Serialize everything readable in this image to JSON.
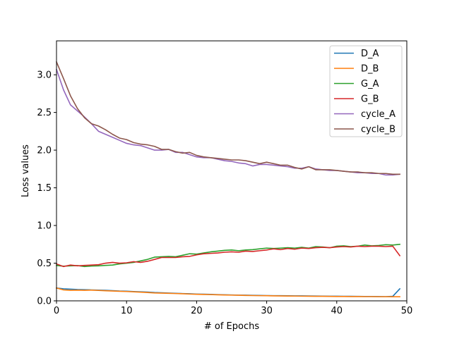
{
  "chart_data": {
    "type": "line",
    "title": "",
    "xlabel": "# of Epochs",
    "ylabel": "Loss values",
    "xlim": [
      0,
      50
    ],
    "ylim": [
      0,
      3.45
    ],
    "xticks": [
      0,
      10,
      20,
      30,
      40,
      50
    ],
    "xtick_labels": [
      "0",
      "10",
      "20",
      "30",
      "40",
      "50"
    ],
    "yticks": [
      0.0,
      0.5,
      1.0,
      1.5,
      2.0,
      2.5,
      3.0
    ],
    "ytick_labels": [
      "0.0",
      "0.5",
      "1.0",
      "1.5",
      "2.0",
      "2.5",
      "3.0"
    ],
    "grid": false,
    "legend_position": "top-right",
    "x": [
      0,
      1,
      2,
      3,
      4,
      5,
      6,
      7,
      8,
      9,
      10,
      11,
      12,
      13,
      14,
      15,
      16,
      17,
      18,
      19,
      20,
      21,
      22,
      23,
      24,
      25,
      26,
      27,
      28,
      29,
      30,
      31,
      32,
      33,
      34,
      35,
      36,
      37,
      38,
      39,
      40,
      41,
      42,
      43,
      44,
      45,
      46,
      47,
      48,
      49
    ],
    "series": [
      {
        "name": "D_A",
        "color": "#1f77b4",
        "values": [
          0.17,
          0.16,
          0.155,
          0.15,
          0.148,
          0.145,
          0.142,
          0.14,
          0.135,
          0.13,
          0.128,
          0.124,
          0.12,
          0.116,
          0.11,
          0.107,
          0.104,
          0.1,
          0.097,
          0.094,
          0.09,
          0.088,
          0.086,
          0.083,
          0.08,
          0.078,
          0.076,
          0.075,
          0.073,
          0.072,
          0.07,
          0.069,
          0.068,
          0.067,
          0.066,
          0.066,
          0.065,
          0.064,
          0.063,
          0.062,
          0.061,
          0.06,
          0.06,
          0.059,
          0.058,
          0.058,
          0.057,
          0.056,
          0.06,
          0.16
        ]
      },
      {
        "name": "D_B",
        "color": "#ff7f0e",
        "values": [
          0.17,
          0.145,
          0.14,
          0.142,
          0.14,
          0.142,
          0.138,
          0.134,
          0.13,
          0.127,
          0.124,
          0.12,
          0.115,
          0.11,
          0.105,
          0.102,
          0.1,
          0.097,
          0.094,
          0.09,
          0.087,
          0.085,
          0.083,
          0.08,
          0.078,
          0.076,
          0.074,
          0.072,
          0.07,
          0.069,
          0.068,
          0.066,
          0.065,
          0.064,
          0.063,
          0.062,
          0.061,
          0.06,
          0.06,
          0.059,
          0.058,
          0.058,
          0.057,
          0.057,
          0.056,
          0.056,
          0.055,
          0.055,
          0.054,
          0.054
        ]
      },
      {
        "name": "G_A",
        "color": "#2ca02c",
        "values": [
          0.47,
          0.46,
          0.465,
          0.468,
          0.455,
          0.462,
          0.465,
          0.47,
          0.475,
          0.49,
          0.5,
          0.51,
          0.53,
          0.55,
          0.58,
          0.585,
          0.59,
          0.585,
          0.605,
          0.625,
          0.62,
          0.635,
          0.65,
          0.66,
          0.67,
          0.675,
          0.665,
          0.675,
          0.68,
          0.69,
          0.7,
          0.695,
          0.7,
          0.705,
          0.7,
          0.71,
          0.7,
          0.72,
          0.715,
          0.705,
          0.725,
          0.73,
          0.72,
          0.725,
          0.74,
          0.73,
          0.735,
          0.745,
          0.74,
          0.75
        ]
      },
      {
        "name": "G_B",
        "color": "#d62728",
        "values": [
          0.49,
          0.455,
          0.475,
          0.465,
          0.47,
          0.475,
          0.48,
          0.5,
          0.51,
          0.5,
          0.505,
          0.52,
          0.51,
          0.525,
          0.55,
          0.575,
          0.575,
          0.575,
          0.585,
          0.59,
          0.61,
          0.625,
          0.63,
          0.635,
          0.645,
          0.65,
          0.645,
          0.66,
          0.655,
          0.665,
          0.675,
          0.69,
          0.68,
          0.695,
          0.685,
          0.7,
          0.695,
          0.705,
          0.71,
          0.705,
          0.715,
          0.72,
          0.715,
          0.725,
          0.72,
          0.725,
          0.725,
          0.72,
          0.725,
          0.6
        ]
      },
      {
        "name": "cycle_A",
        "color": "#9467bd",
        "values": [
          3.07,
          2.8,
          2.6,
          2.52,
          2.44,
          2.35,
          2.25,
          2.21,
          2.17,
          2.13,
          2.09,
          2.07,
          2.06,
          2.03,
          2.0,
          2.0,
          2.01,
          1.97,
          1.97,
          1.94,
          1.91,
          1.9,
          1.9,
          1.88,
          1.86,
          1.85,
          1.83,
          1.82,
          1.79,
          1.81,
          1.81,
          1.8,
          1.79,
          1.78,
          1.76,
          1.76,
          1.78,
          1.75,
          1.74,
          1.73,
          1.73,
          1.72,
          1.71,
          1.7,
          1.7,
          1.69,
          1.69,
          1.67,
          1.67,
          1.68
        ]
      },
      {
        "name": "cycle_B",
        "color": "#8c564b",
        "values": [
          3.17,
          2.95,
          2.72,
          2.55,
          2.43,
          2.35,
          2.32,
          2.27,
          2.21,
          2.16,
          2.14,
          2.1,
          2.08,
          2.07,
          2.05,
          2.01,
          2.01,
          1.98,
          1.96,
          1.97,
          1.93,
          1.91,
          1.9,
          1.89,
          1.88,
          1.87,
          1.87,
          1.86,
          1.84,
          1.82,
          1.84,
          1.82,
          1.8,
          1.8,
          1.77,
          1.75,
          1.78,
          1.74,
          1.74,
          1.74,
          1.73,
          1.72,
          1.71,
          1.71,
          1.7,
          1.7,
          1.69,
          1.69,
          1.68,
          1.68
        ]
      }
    ]
  }
}
